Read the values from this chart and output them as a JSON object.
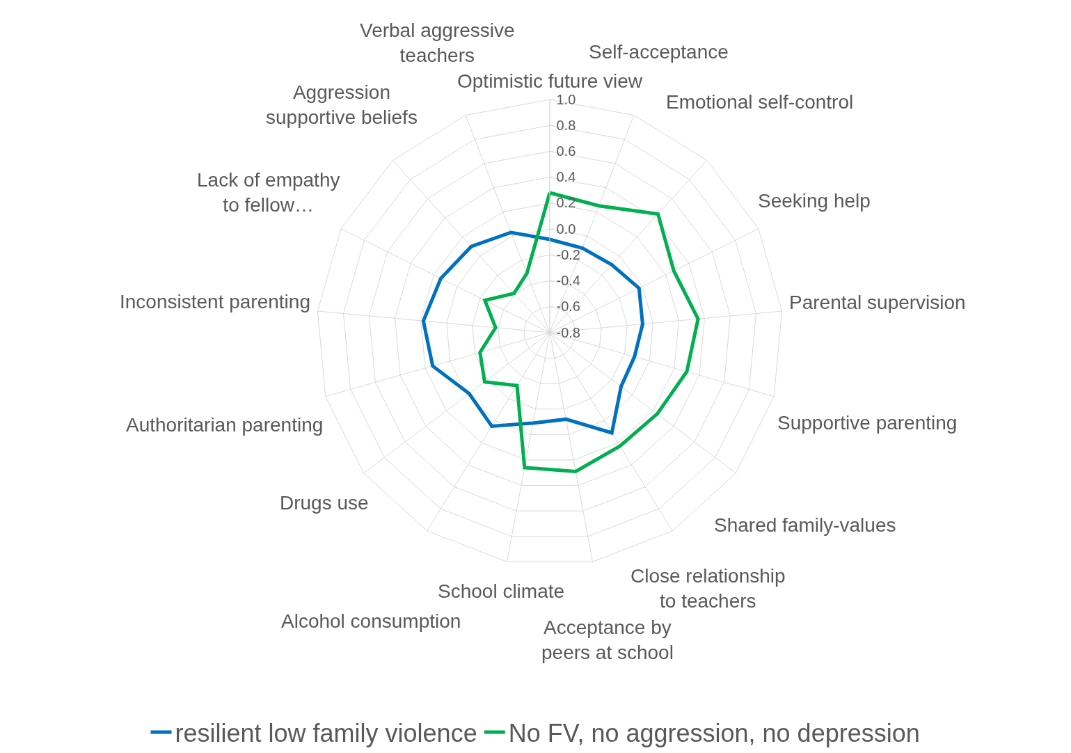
{
  "chart_data": {
    "type": "radar",
    "categories": [
      "Optimistic future view",
      "Self-acceptance",
      "Emotional self-control",
      "Seeking help",
      "Parental supervision",
      "Supportive parenting",
      "Shared family-values",
      "Close relationship to teachers",
      "Acceptance by peers at school",
      "School climate",
      "Alcohol consumption",
      "Drugs use",
      "Authoritarian parenting",
      "Inconsistent parenting",
      "Lack of empathy to fellow…",
      "Aggression supportive beliefs",
      "Verbal aggressive teachers"
    ],
    "series": [
      {
        "name": "resilient low family violence",
        "color": "#0070c0",
        "values": [
          -0.08,
          -0.1,
          -0.09,
          -0.03,
          -0.08,
          -0.12,
          -0.11,
          0.11,
          -0.12,
          -0.09,
          0.05,
          -0.02,
          0.14,
          0.18,
          0.14,
          0.1,
          0.03
        ]
      },
      {
        "name": "No FV, no aggression, no depression",
        "color": "#00b050",
        "values": [
          0.28,
          0.25,
          0.44,
          0.27,
          0.35,
          0.3,
          0.24,
          0.23,
          0.29,
          0.26,
          -0.32,
          -0.17,
          -0.24,
          -0.38,
          -0.24,
          -0.39,
          -0.31
        ]
      }
    ],
    "ylim": [
      -0.8,
      1.0
    ],
    "yticks": [
      -0.8,
      -0.6,
      -0.4,
      -0.2,
      {
        "value": 0,
        "label": "0.0"
      },
      0.2,
      0.4,
      0.6,
      0.8,
      {
        "value": 1,
        "label": "1.0"
      }
    ],
    "grid": true,
    "legend": "bottom"
  }
}
